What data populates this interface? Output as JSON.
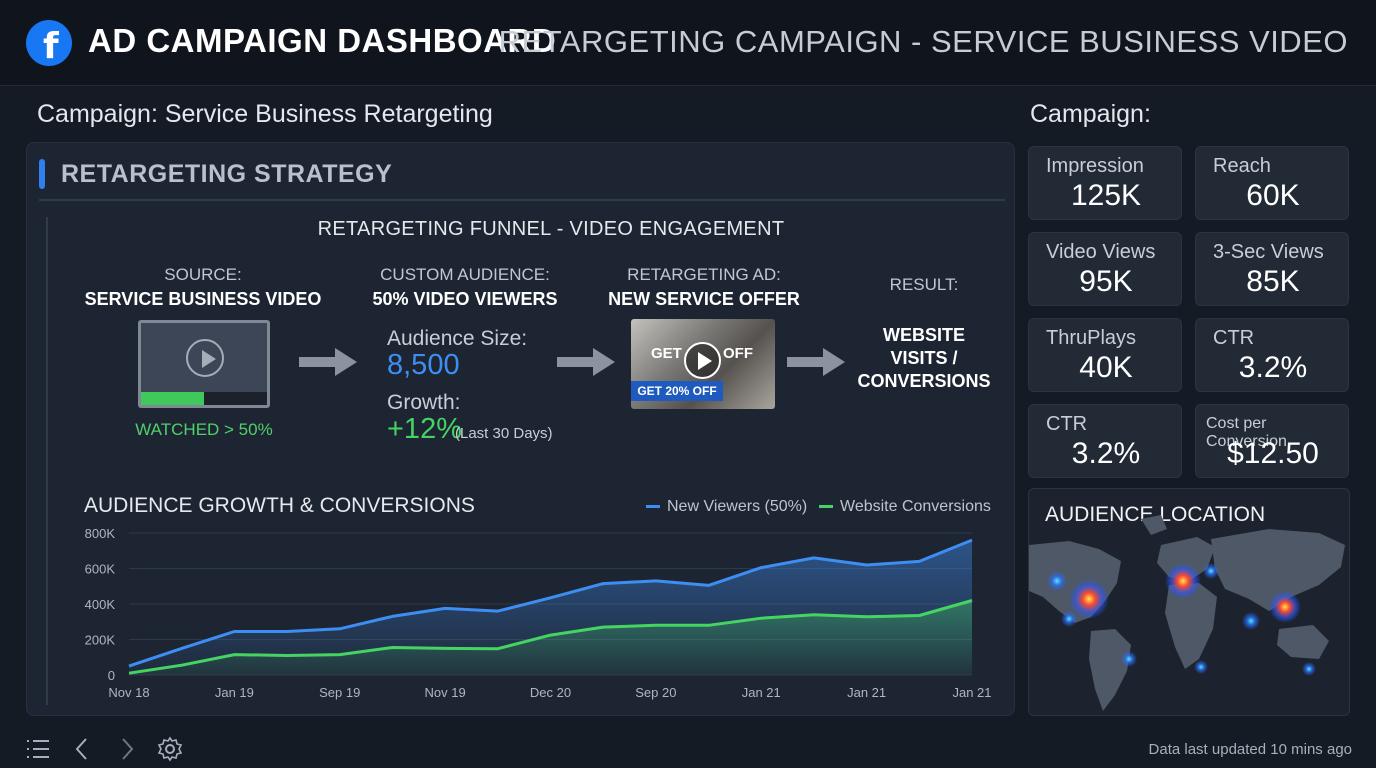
{
  "header": {
    "app_title": "AD CAMPAIGN DASHBOARD",
    "campaign_title": "RETARGETING CAMPAIGN - SERVICE BUSINESS VIDEO",
    "logo_letter": "f"
  },
  "left_subtitle": "Campaign: Service Business Retargeting",
  "right_subtitle": "Campaign:",
  "strategy": {
    "heading": "RETARGETING STRATEGY",
    "funnel_title": "RETARGETING FUNNEL - VIDEO ENGAGEMENT",
    "source": {
      "label": "SOURCE:",
      "name": "SERVICE BUSINESS VIDEO",
      "watched_label": "WATCHED > 50%",
      "watched_fraction": 0.5
    },
    "audience": {
      "label": "CUSTOM AUDIENCE:",
      "name": "50% VIDEO VIEWERS",
      "size_label": "Audience Size:",
      "size_value": "8,500",
      "growth_label": "Growth:",
      "growth_value": "+12%",
      "growth_note": "(Last 30 Days)"
    },
    "ad": {
      "label": "RETARGETING AD:",
      "name": "NEW SERVICE OFFER",
      "overlay_left": "GET",
      "overlay_right": "OFF",
      "badge": "GET 20% OFF"
    },
    "result": {
      "label": "RESULT:",
      "line1": "WEBSITE",
      "line2": "VISITS /",
      "line3": "CONVERSIONS"
    }
  },
  "chart_data": {
    "type": "area",
    "title": "AUDIENCE GROWTH & CONVERSIONS",
    "categories": [
      "Nov 18",
      "Jan 19",
      "Sep 19",
      "Nov 19",
      "Dec 20",
      "Sep 20",
      "Jan 21",
      "Jan 21",
      "Jan 21"
    ],
    "y_tick_labels": [
      "800K",
      "600K",
      "400K",
      "200K",
      "0"
    ],
    "ylim": [
      0,
      800000
    ],
    "grid": true,
    "legend": "top-right",
    "series": [
      {
        "name": "New Viewers (50%)",
        "color": "#3d8ef2",
        "x": [
          0,
          0.5,
          1,
          1.5,
          2,
          2.5,
          3,
          3.5,
          4,
          4.5,
          5,
          5.5,
          6,
          6.5,
          7,
          7.5,
          8
        ],
        "values": [
          50000,
          150000,
          245000,
          245000,
          260000,
          330000,
          375000,
          360000,
          435000,
          515000,
          530000,
          505000,
          605000,
          660000,
          620000,
          640000,
          760000
        ]
      },
      {
        "name": "Website Conversions",
        "color": "#45d462",
        "x": [
          0,
          0.5,
          1,
          1.5,
          2,
          2.5,
          3,
          3.5,
          4,
          4.5,
          5,
          5.5,
          6,
          6.5,
          7,
          7.5,
          8
        ],
        "values": [
          10000,
          55000,
          115000,
          110000,
          115000,
          155000,
          150000,
          148000,
          225000,
          270000,
          280000,
          280000,
          320000,
          340000,
          328000,
          335000,
          420000
        ]
      }
    ]
  },
  "kpis": [
    {
      "label": "Impression",
      "value": "125K"
    },
    {
      "label": "Reach",
      "value": "60K"
    },
    {
      "label": "Video Views",
      "value": "95K"
    },
    {
      "label": "3-Sec Views",
      "value": "85K"
    },
    {
      "label": "ThruPlays",
      "value": "40K"
    },
    {
      "label": "CTR",
      "value": "3.2%"
    },
    {
      "label": "CTR",
      "value": "3.2%"
    },
    {
      "label": "Cost per Conversion",
      "value": "$12.50"
    }
  ],
  "map": {
    "title": "AUDIENCE LOCATION",
    "hotspot_color": "#ff4b2b"
  },
  "footer": {
    "updated": "Data last updated 10 mins ago"
  }
}
